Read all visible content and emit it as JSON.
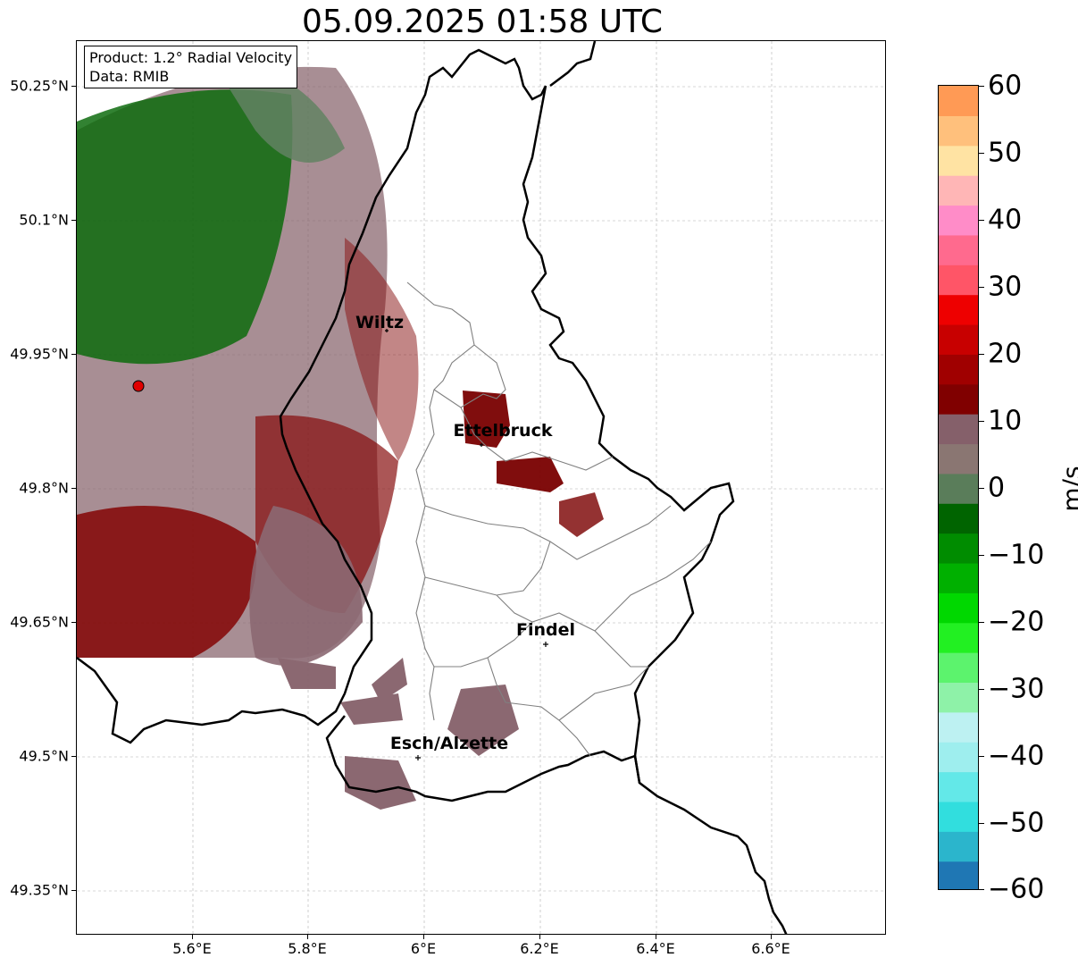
{
  "title": "05.09.2025 01:58 UTC",
  "info": {
    "product": "Product: 1.2° Radial Velocity",
    "data": "Data: RMIB"
  },
  "axes": {
    "y_ticks": [
      "50.25°N",
      "50.1°N",
      "49.95°N",
      "49.8°N",
      "49.65°N",
      "49.5°N",
      "49.35°N"
    ],
    "x_ticks": [
      "5.6°E",
      "5.8°E",
      "6°E",
      "6.2°E",
      "6.4°E",
      "6.6°E"
    ],
    "lat_range": [
      49.3,
      50.3
    ],
    "lon_range": [
      5.4,
      6.8
    ]
  },
  "cities": [
    {
      "name": "Wiltz"
    },
    {
      "name": "Ettelbruck"
    },
    {
      "name": "Findel"
    },
    {
      "name": "Esch/Alzette"
    }
  ],
  "colorbar": {
    "unit": "m/s",
    "min": -60,
    "max": 60,
    "tick_labels": [
      "60",
      "50",
      "40",
      "30",
      "20",
      "10",
      "0",
      "−10",
      "−20",
      "−30",
      "−40",
      "−50",
      "−60"
    ],
    "colors": [
      "#1f77b4",
      "#2bb5cc",
      "#31dede",
      "#63e8e8",
      "#9eeeee",
      "#bdf1f2",
      "#8ef2a8",
      "#5cf36d",
      "#22f022",
      "#00d800",
      "#00b000",
      "#008c00",
      "#006400",
      "#5a7d5a",
      "#8a7672",
      "#85606a",
      "#800000",
      "#a00000",
      "#c80000",
      "#ee0000",
      "#ff5567",
      "#ff6a8e",
      "#ff8cc8",
      "#ffb6b6",
      "#ffe3a3",
      "#ffc07c",
      "#ff9a55"
    ]
  },
  "radar_site": {
    "color": "#e00000"
  }
}
